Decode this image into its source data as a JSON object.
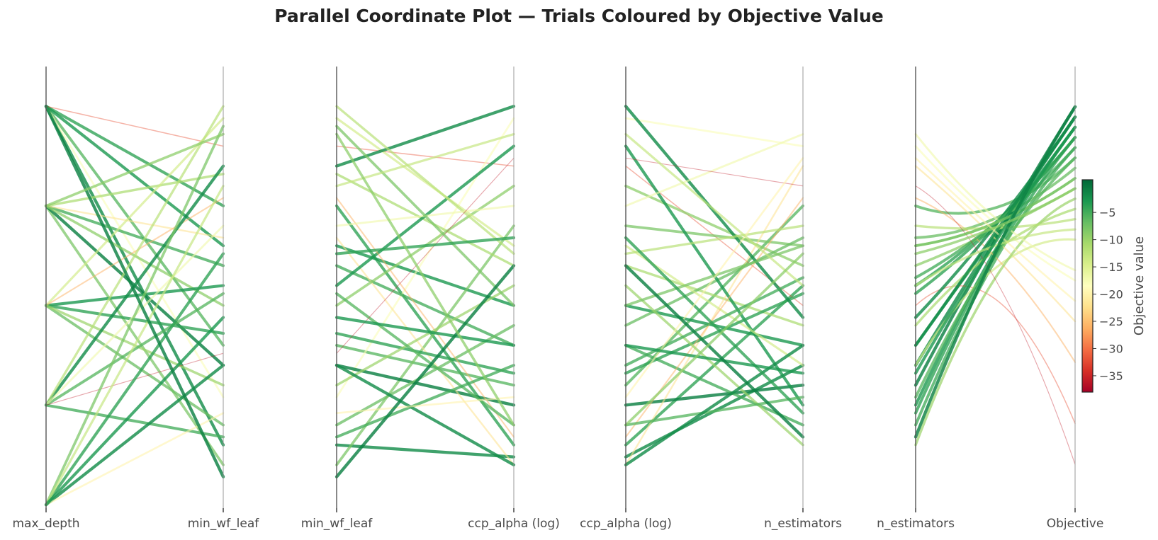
{
  "title": "Parallel Coordinate Plot — Trials Coloured by Objective Value",
  "chart_data": {
    "type": "parallel_coordinates",
    "title": "Parallel Coordinate Plot — Trials Coloured by Objective Value",
    "panels": [
      {
        "left": "max_depth",
        "right": "min_wf_leaf"
      },
      {
        "left": "min_wf_leaf",
        "right": "ccp_alpha (log)"
      },
      {
        "left": "ccp_alpha (log)",
        "right": "n_estimators"
      },
      {
        "left": "n_estimators",
        "right": "Objective"
      }
    ],
    "axis_scale": "normalized 0-1 per dimension",
    "colorbar": {
      "label": "Objective value",
      "colormap": "RdYlGn",
      "range": [
        -38,
        1
      ],
      "ticks": [
        -5,
        -10,
        -15,
        -20,
        -25,
        -30,
        -35
      ],
      "tick_labels": [
        "−5",
        "−10",
        "−15",
        "−20",
        "−25",
        "−30",
        "−35"
      ],
      "colors": [
        "#a50026",
        "#d73027",
        "#f46d43",
        "#fdae61",
        "#fee08b",
        "#ffffbf",
        "#d9ef8b",
        "#a6d96a",
        "#66bd63",
        "#1a9850",
        "#006837"
      ]
    },
    "trials": [
      {
        "values": [
          0.95,
          0.1,
          0.07,
          0.3,
          -2
        ]
      },
      {
        "values": [
          0.95,
          0.7,
          0.1,
          0.5,
          -4
        ]
      },
      {
        "values": [
          0.95,
          0.35,
          0.25,
          0.7,
          -6
        ]
      },
      {
        "values": [
          0.95,
          0.6,
          0.45,
          0.35,
          -3
        ]
      },
      {
        "values": [
          0.95,
          0.85,
          0.8,
          0.45,
          -32
        ]
      },
      {
        "values": [
          0.95,
          0.22,
          0.92,
          0.85,
          -18
        ]
      },
      {
        "values": [
          0.7,
          0.05,
          0.65,
          0.6,
          -8
        ]
      },
      {
        "values": [
          0.7,
          0.3,
          0.2,
          0.25,
          -1
        ]
      },
      {
        "values": [
          0.7,
          0.55,
          0.35,
          0.15,
          -5
        ]
      },
      {
        "values": [
          0.7,
          0.78,
          0.55,
          0.4,
          -11
        ]
      },
      {
        "values": [
          0.7,
          0.62,
          0.05,
          0.8,
          -22
        ]
      },
      {
        "values": [
          0.7,
          0.45,
          0.75,
          0.55,
          -9
        ]
      },
      {
        "values": [
          0.45,
          0.15,
          0.4,
          0.62,
          -7
        ]
      },
      {
        "values": [
          0.45,
          0.5,
          0.85,
          0.2,
          -3
        ]
      },
      {
        "values": [
          0.45,
          0.92,
          0.6,
          0.3,
          -14
        ]
      },
      {
        "values": [
          0.45,
          0.38,
          0.28,
          0.48,
          -4
        ]
      },
      {
        "values": [
          0.45,
          0.72,
          0.12,
          0.72,
          -26
        ]
      },
      {
        "values": [
          0.45,
          0.25,
          0.5,
          0.1,
          -10
        ]
      },
      {
        "values": [
          0.2,
          0.8,
          0.95,
          0.42,
          -2
        ]
      },
      {
        "values": [
          0.2,
          0.95,
          0.58,
          0.65,
          -12
        ]
      },
      {
        "values": [
          0.2,
          0.48,
          0.15,
          0.22,
          -6
        ]
      },
      {
        "values": [
          0.2,
          0.65,
          0.7,
          0.88,
          -17
        ]
      },
      {
        "values": [
          0.2,
          0.12,
          0.3,
          0.52,
          -5
        ]
      },
      {
        "values": [
          0.2,
          0.33,
          0.82,
          0.75,
          -36
        ]
      },
      {
        "values": [
          -0.05,
          0.3,
          0.05,
          0.35,
          -2
        ]
      },
      {
        "values": [
          -0.05,
          0.9,
          0.45,
          0.6,
          -8
        ]
      },
      {
        "values": [
          -0.05,
          0.58,
          0.62,
          0.18,
          -4
        ]
      },
      {
        "values": [
          -0.05,
          0.18,
          0.22,
          0.82,
          -20
        ]
      },
      {
        "values": [
          -0.05,
          0.75,
          0.88,
          0.5,
          -13
        ]
      },
      {
        "values": [
          -0.05,
          0.42,
          0.35,
          0.28,
          -3
        ]
      },
      {
        "values": [
          0.95,
          0.02,
          0.55,
          0.12,
          -1
        ]
      },
      {
        "values": [
          0.7,
          0.88,
          0.15,
          0.58,
          -9
        ]
      }
    ]
  }
}
